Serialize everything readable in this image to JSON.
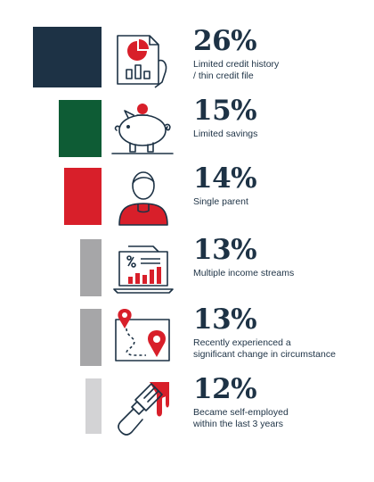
{
  "colors": {
    "navy": "#1d3245",
    "green": "#0e5c35",
    "red": "#d81f2a",
    "gray": "#a6a6a8",
    "lightgray": "#d3d3d5"
  },
  "items": [
    {
      "percent": "26%",
      "value": 26,
      "description": "Limited credit history\n/ thin credit file",
      "icon": "credit-report-icon",
      "color": "#1d3245"
    },
    {
      "percent": "15%",
      "value": 15,
      "description": "Limited savings",
      "icon": "piggy-bank-icon",
      "color": "#0e5c35"
    },
    {
      "percent": "14%",
      "value": 14,
      "description": "Single parent",
      "icon": "person-icon",
      "color": "#d81f2a"
    },
    {
      "percent": "13%",
      "value": 13,
      "description": "Multiple income streams",
      "icon": "laptop-chart-icon",
      "color": "#a6a6a8"
    },
    {
      "percent": "13%",
      "value": 13,
      "description": "Recently experienced a\nsignificant change in circumstance",
      "icon": "map-route-icon",
      "color": "#a6a6a8"
    },
    {
      "percent": "12%",
      "value": 12,
      "description": "Became self-employed\nwithin the last 3 years",
      "icon": "paint-brush-icon",
      "color": "#d3d3d5"
    }
  ]
}
